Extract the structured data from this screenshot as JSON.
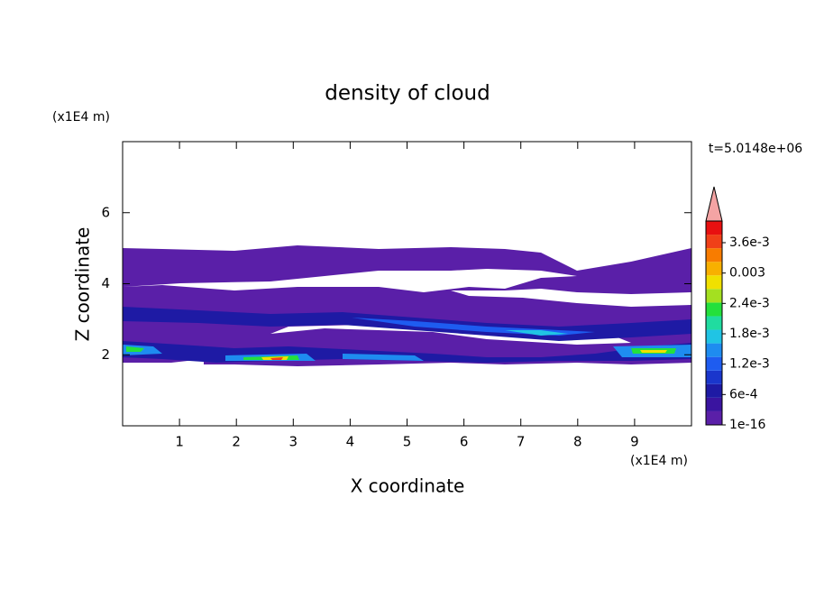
{
  "chart_data": {
    "type": "contour",
    "title": "density of cloud",
    "x_label": "X coordinate",
    "y_label": "Z coordinate",
    "x_unit": "(x1E4 m)",
    "y_unit": "(x1E4 m)",
    "time_label": "t=5.0148e+06",
    "xlim": [
      0,
      10
    ],
    "xticks": [
      1,
      2,
      3,
      4,
      5,
      6,
      7,
      8,
      9
    ],
    "ylim": [
      0,
      8
    ],
    "yticks": [
      2,
      4,
      6
    ],
    "colorbar": {
      "ticks": [
        1e-16,
        {
          "value": 0.0006,
          "label": "6e-4"
        },
        {
          "value": 0.0012,
          "label": "1.2e-3"
        },
        {
          "value": 0.0018,
          "label": "1.8e-3"
        },
        {
          "value": 0.0024,
          "label": "2.4e-3"
        },
        0.003,
        {
          "value": 0.0036,
          "label": "3.6e-3"
        }
      ],
      "colors": [
        "#5a1fa8",
        "#3a14a0",
        "#1e1aa4",
        "#1a36cc",
        "#1e5cf0",
        "#1e8cf0",
        "#20c4e4",
        "#20dca0",
        "#24e03c",
        "#a4e020",
        "#f0e000",
        "#f8b000",
        "#f87c00",
        "#f04018",
        "#e81010"
      ],
      "extend_color": "#f4a4a4"
    }
  }
}
